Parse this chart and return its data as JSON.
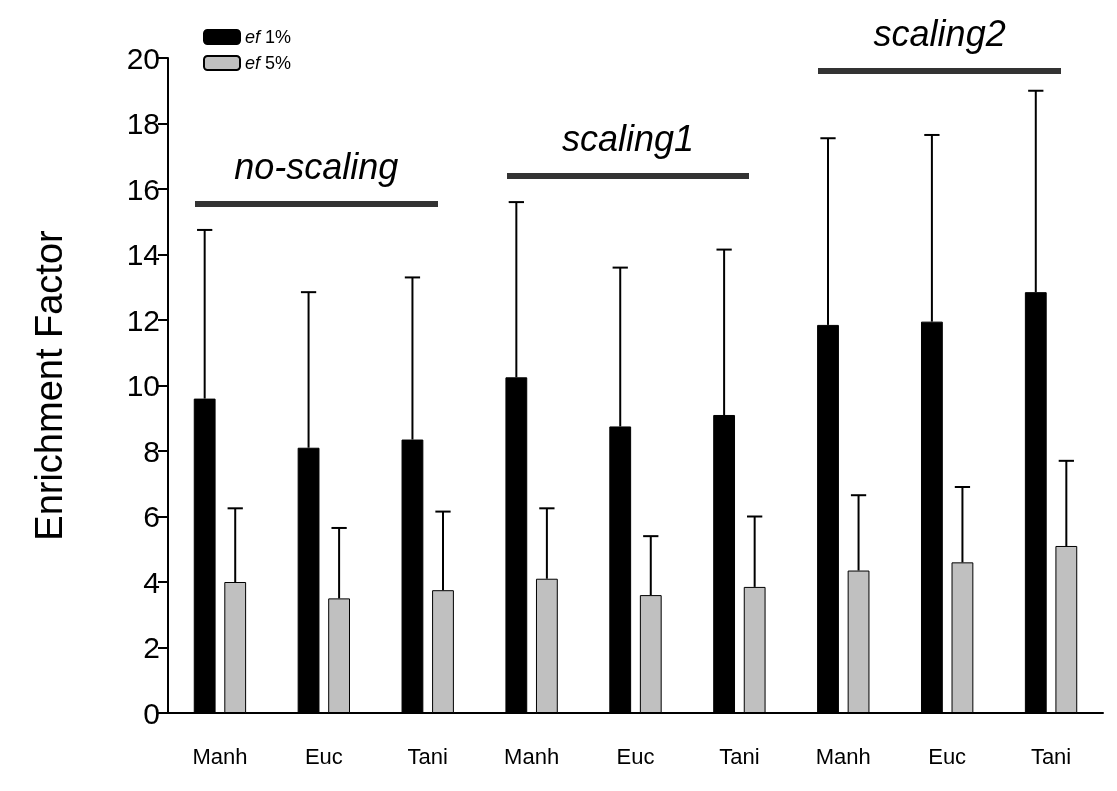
{
  "chart_data": {
    "type": "bar",
    "ylabel": "Enrichment Factor",
    "categories": [
      "Manh",
      "Euc",
      "Tani",
      "Manh",
      "Euc",
      "Tani",
      "Manh",
      "Euc",
      "Tani"
    ],
    "series": [
      {
        "name": "ef 1%",
        "color": "#000000",
        "values": [
          9.6,
          8.1,
          8.35,
          10.25,
          8.75,
          9.1,
          11.85,
          11.95,
          12.85
        ],
        "errors": [
          [
            9.6,
            14.75
          ],
          [
            8.1,
            12.85
          ],
          [
            8.35,
            13.3
          ],
          [
            10.25,
            15.6
          ],
          [
            8.75,
            13.6
          ],
          [
            9.1,
            14.15
          ],
          [
            11.85,
            17.55
          ],
          [
            11.95,
            17.65
          ],
          [
            12.85,
            19.0
          ]
        ]
      },
      {
        "name": "ef 5%",
        "color": "#c0c0c0",
        "values": [
          4.0,
          3.5,
          3.75,
          4.1,
          3.6,
          3.85,
          4.35,
          4.6,
          5.1
        ],
        "errors": [
          [
            4.0,
            6.25
          ],
          [
            3.5,
            5.65
          ],
          [
            3.75,
            6.15
          ],
          [
            4.1,
            6.25
          ],
          [
            3.6,
            5.4
          ],
          [
            3.85,
            6.0
          ],
          [
            4.35,
            6.65
          ],
          [
            4.6,
            6.9
          ],
          [
            5.1,
            7.7
          ]
        ]
      }
    ],
    "annotations": [
      "no-scaling",
      "scaling1",
      "scaling2"
    ],
    "ylim": [
      0,
      20
    ],
    "yticks": [
      0,
      2,
      4,
      6,
      8,
      10,
      12,
      14,
      16,
      18,
      20
    ],
    "grid": false,
    "legend": "top left"
  }
}
